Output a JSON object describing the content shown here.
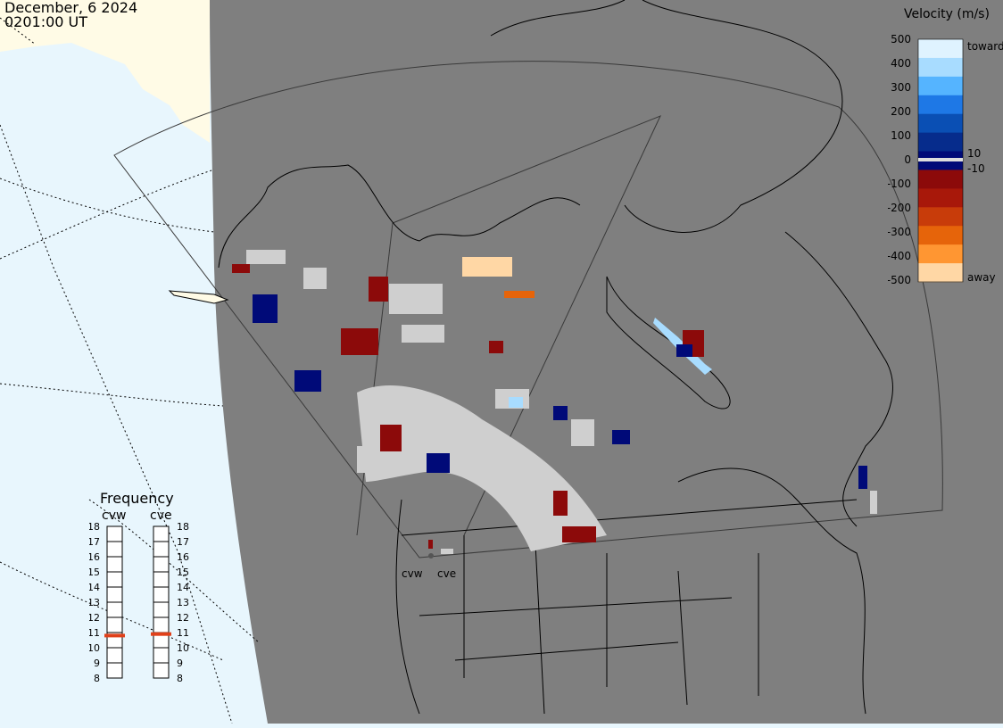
{
  "header": {
    "date": "December, 6 2024",
    "time": "0201:00 UT"
  },
  "legend": {
    "title": "Velocity (m/s)",
    "ticks": [
      "500",
      "400",
      "300",
      "200",
      "100",
      "0",
      "-100",
      "-200",
      "-300",
      "-400",
      "-500"
    ],
    "inner_labels": [
      "10",
      "-10"
    ],
    "toward_label": "toward",
    "away_label": "away",
    "colors": [
      "#dff3ff",
      "#a8dcff",
      "#55b4ff",
      "#1e78e6",
      "#0a4fb4",
      "#062c8c",
      "#000a78",
      "#8c0a0a",
      "#a8180a",
      "#c83c0a",
      "#e6640a",
      "#ff9632",
      "#ffd7a5"
    ]
  },
  "frequency": {
    "title": "Frequency",
    "radars": [
      "cvw",
      "cve"
    ],
    "scale": [
      "18",
      "17",
      "16",
      "15",
      "14",
      "13",
      "12",
      "11",
      "10",
      "9",
      "8"
    ],
    "values": [
      10.8,
      10.9
    ],
    "marker_color": "#e0401a"
  },
  "map": {
    "background_color": "#7f7f7f",
    "ocean_color": "#e8f6fd",
    "land_outside_color": "#fffbe6",
    "radar_sites": [
      "cvw",
      "cve"
    ]
  }
}
